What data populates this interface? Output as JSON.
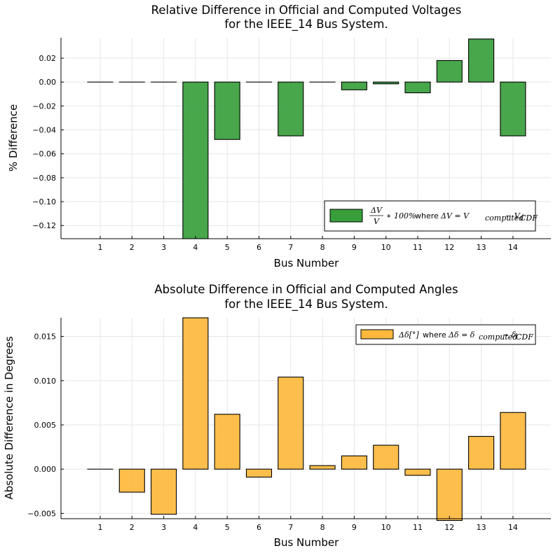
{
  "chart_data": [
    {
      "type": "bar",
      "title_line1": "Relative Difference in Official and Computed Voltages",
      "title_line2": "for the IEEE_14 Bus System.",
      "xlabel": "Bus Number",
      "ylabel": "% Difference",
      "categories": [
        "1",
        "2",
        "3",
        "4",
        "5",
        "6",
        "7",
        "8",
        "9",
        "10",
        "11",
        "12",
        "13",
        "14"
      ],
      "values": [
        0,
        0,
        0,
        -0.131,
        -0.048,
        0,
        -0.045,
        0,
        -0.0065,
        -0.0015,
        -0.009,
        0.018,
        0.036,
        -0.045
      ],
      "ylim": [
        -0.131,
        0.037
      ],
      "yticks": [
        -0.12,
        -0.1,
        -0.08,
        -0.06,
        -0.04,
        -0.02,
        0.0,
        0.02
      ],
      "ytick_labels": [
        "−0.12",
        "−0.10",
        "−0.08",
        "−0.06",
        "−0.04",
        "−0.02",
        "0.00",
        "0.02"
      ],
      "color": "#389e3c",
      "grid": true,
      "legend_position": "bottom-right",
      "legend": {
        "math_fraction_num": "ΔV",
        "math_fraction_den": "V",
        "math_mid": "∗ 100%",
        "text": "where",
        "math_end": "ΔV = V",
        "sub1": "computed",
        "math_minus": " − V",
        "sub2": "CDF"
      }
    },
    {
      "type": "bar",
      "title_line1": "Absolute Difference in Official and Computed Angles",
      "title_line2": "for the IEEE_14 Bus System.",
      "xlabel": "Bus Number",
      "ylabel": "Absolute Difference in Degrees",
      "categories": [
        "1",
        "2",
        "3",
        "4",
        "5",
        "6",
        "7",
        "8",
        "9",
        "10",
        "11",
        "12",
        "13",
        "14"
      ],
      "values": [
        0,
        -0.0026,
        -0.0051,
        0.0171,
        0.0062,
        -0.0009,
        0.0104,
        0.0004,
        0.0015,
        0.0027,
        -0.0007,
        -0.0058,
        0.0037,
        0.0064
      ],
      "ylim": [
        -0.0056,
        0.0171
      ],
      "yticks": [
        -0.005,
        0.0,
        0.005,
        0.01,
        0.015
      ],
      "ytick_labels": [
        "−0.005",
        "0.000",
        "0.005",
        "0.010",
        "0.015"
      ],
      "color": "#fdb93d",
      "grid": true,
      "legend_position": "top-right",
      "legend": {
        "math_start": "Δδ[°]",
        "text": "where",
        "math_end": "Δδ = δ",
        "sub1": "computed",
        "math_minus": " − δ",
        "sub2": "CDF"
      }
    }
  ]
}
